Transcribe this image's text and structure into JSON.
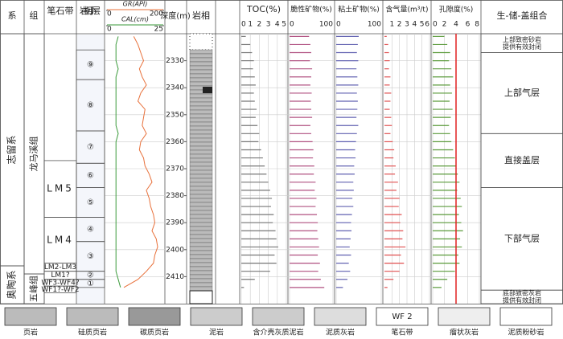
{
  "headers": {
    "system": "系",
    "formation": "组",
    "graptolite": "笔石带",
    "sublayer": "岩相小层",
    "gr": "GR(API)",
    "cal": "CAL(cm)",
    "depth": "深度(m)",
    "lithology": "岩相",
    "toc": "TOC(%)",
    "brittle": "脆性矿物(%)",
    "clay": "粘土矿物(%)",
    "gas": "含气量(m³/t)",
    "porosity": "孔隙度(%)",
    "combo": "生-储-盖组合"
  },
  "depth_axis": {
    "lim": [
      2320,
      2420
    ],
    "ticks": [
      2330,
      2340,
      2350,
      2360,
      2370,
      2380,
      2390,
      2400,
      2410
    ]
  },
  "tracks": {
    "gr": {
      "lim": [
        0,
        200
      ],
      "ticks": [
        0,
        200
      ],
      "color": "#e8703a"
    },
    "cal": {
      "lim": [
        0,
        25
      ],
      "ticks": [
        0,
        25
      ],
      "color": "#3a9a3a"
    },
    "toc": {
      "lim": [
        0,
        5
      ],
      "ticks": [
        0,
        1,
        2,
        3,
        4,
        5
      ],
      "color": "#777777"
    },
    "brittle": {
      "lim": [
        0,
        100
      ],
      "ticks": [
        0,
        100
      ],
      "color": "#b05080"
    },
    "clay": {
      "lim": [
        0,
        100
      ],
      "ticks": [
        0,
        100
      ],
      "color": "#6060b0"
    },
    "gas": {
      "lim": [
        0,
        6
      ],
      "ticks": [
        1,
        2,
        3,
        4,
        5,
        6
      ],
      "color": "#e05050"
    },
    "porosity": {
      "lim": [
        0,
        8
      ],
      "ticks": [
        0,
        2,
        4,
        6,
        8
      ],
      "color": "#5a9a3a",
      "cutoff": 4
    }
  },
  "samples": {
    "depth": [
      2321,
      2324,
      2327,
      2330,
      2333,
      2336,
      2339,
      2342,
      2345,
      2348,
      2351,
      2354,
      2357,
      2360,
      2363,
      2366,
      2369,
      2372,
      2375,
      2378,
      2381,
      2384,
      2387,
      2390,
      2393,
      2396,
      2399,
      2402,
      2405,
      2408,
      2411,
      2414
    ],
    "gr": [
      95,
      110,
      120,
      130,
      115,
      125,
      140,
      120,
      110,
      135,
      130,
      125,
      140,
      120,
      115,
      130,
      135,
      150,
      160,
      140,
      150,
      155,
      165,
      170,
      160,
      175,
      180,
      170,
      165,
      140,
      110,
      60
    ],
    "cal": [
      5,
      4,
      4,
      4,
      5,
      4,
      4,
      4,
      4,
      4,
      4,
      4,
      5,
      4,
      4,
      4,
      4,
      4,
      4,
      4,
      4,
      4,
      4,
      4,
      4,
      4,
      4,
      4,
      4,
      4,
      5,
      6
    ],
    "toc": [
      0.5,
      1.0,
      1.2,
      1.4,
      1.3,
      1.5,
      1.6,
      1.4,
      1.5,
      1.7,
      1.6,
      1.8,
      2.0,
      1.9,
      2.2,
      2.4,
      2.6,
      2.8,
      3.0,
      3.2,
      3.4,
      3.3,
      3.6,
      3.5,
      3.8,
      3.9,
      4.1,
      3.7,
      3.9,
      3.2,
      1.5,
      0.3
    ],
    "brittle": [
      45,
      48,
      50,
      47,
      52,
      50,
      48,
      51,
      49,
      50,
      52,
      48,
      50,
      53,
      55,
      54,
      57,
      56,
      60,
      58,
      62,
      60,
      63,
      65,
      64,
      66,
      68,
      65,
      70,
      66,
      72,
      80
    ],
    "clay": [
      50,
      48,
      46,
      49,
      45,
      47,
      49,
      46,
      48,
      47,
      45,
      49,
      46,
      44,
      42,
      43,
      40,
      41,
      38,
      39,
      36,
      38,
      35,
      33,
      34,
      32,
      30,
      33,
      28,
      31,
      25,
      15
    ],
    "gas": [
      0.3,
      0.5,
      0.6,
      0.7,
      0.6,
      0.8,
      0.7,
      0.9,
      0.8,
      0.7,
      0.9,
      1.0,
      0.8,
      1.1,
      1.3,
      1.2,
      1.5,
      1.4,
      1.8,
      1.6,
      2.0,
      1.9,
      2.3,
      2.1,
      2.5,
      2.4,
      2.8,
      2.2,
      2.6,
      2.0,
      1.2,
      0.4
    ],
    "porosity": [
      2.0,
      2.5,
      3.0,
      2.8,
      3.2,
      3.5,
      3.0,
      3.3,
      2.9,
      3.4,
      3.1,
      2.8,
      3.0,
      3.2,
      3.5,
      3.8,
      4.0,
      4.3,
      4.6,
      4.2,
      4.8,
      5.0,
      4.5,
      4.9,
      5.2,
      4.7,
      5.0,
      4.4,
      4.6,
      3.8,
      2.5,
      1.5
    ]
  },
  "strata": {
    "systems": [
      {
        "name": "志留系",
        "top": 2320,
        "bottom": 2406
      },
      {
        "name": "奥陶系",
        "top": 2406,
        "bottom": 2420
      }
    ],
    "formations": [
      {
        "name": "龙马溪组",
        "top": 2320,
        "bottom": 2409
      },
      {
        "name": "五峰组",
        "top": 2409,
        "bottom": 2420
      }
    ],
    "graptolite_zones": [
      {
        "name": "LM5",
        "top": 2367,
        "bottom": 2388
      },
      {
        "name": "LM4",
        "top": 2388,
        "bottom": 2405
      },
      {
        "name": "LM2-LM3",
        "top": 2405,
        "bottom": 2408
      },
      {
        "name": "LM1?",
        "top": 2408,
        "bottom": 2411
      },
      {
        "name": "WF3-WF4?",
        "top": 2411,
        "bottom": 2413.5
      },
      {
        "name": "WF1?-WF2",
        "top": 2413.5,
        "bottom": 2416
      }
    ],
    "sublayers": [
      {
        "name": "⑨",
        "top": 2326,
        "bottom": 2337
      },
      {
        "name": "⑧",
        "top": 2337,
        "bottom": 2356
      },
      {
        "name": "⑦",
        "top": 2356,
        "bottom": 2368
      },
      {
        "name": "⑥",
        "top": 2368,
        "bottom": 2377
      },
      {
        "name": "⑤",
        "top": 2377,
        "bottom": 2388
      },
      {
        "name": "④",
        "top": 2388,
        "bottom": 2397
      },
      {
        "name": "③",
        "top": 2397,
        "bottom": 2408
      },
      {
        "name": "②",
        "top": 2408,
        "bottom": 2411
      },
      {
        "name": "①",
        "top": 2411,
        "bottom": 2414
      }
    ],
    "combos": [
      {
        "lines": [
          "上部致密砂岩",
          "提供有效封闭"
        ],
        "top": 2320,
        "bottom": 2327
      },
      {
        "lines": [
          "上部气层"
        ],
        "top": 2327,
        "bottom": 2357
      },
      {
        "lines": [
          "直接盖层"
        ],
        "top": 2357,
        "bottom": 2377
      },
      {
        "lines": [
          "下部气层"
        ],
        "top": 2377,
        "bottom": 2415
      },
      {
        "lines": [
          "底部致密灰岩",
          "提供有效封闭"
        ],
        "top": 2415,
        "bottom": 2420
      }
    ]
  },
  "legend": [
    "页岩",
    "硅质页岩",
    "碳质页岩",
    "泥岩",
    "含介壳灰质泥岩",
    "泥质灰岩",
    "笔石带",
    "瘤状灰岩",
    "泥质粉砂岩"
  ],
  "legend_box": "WF 2"
}
